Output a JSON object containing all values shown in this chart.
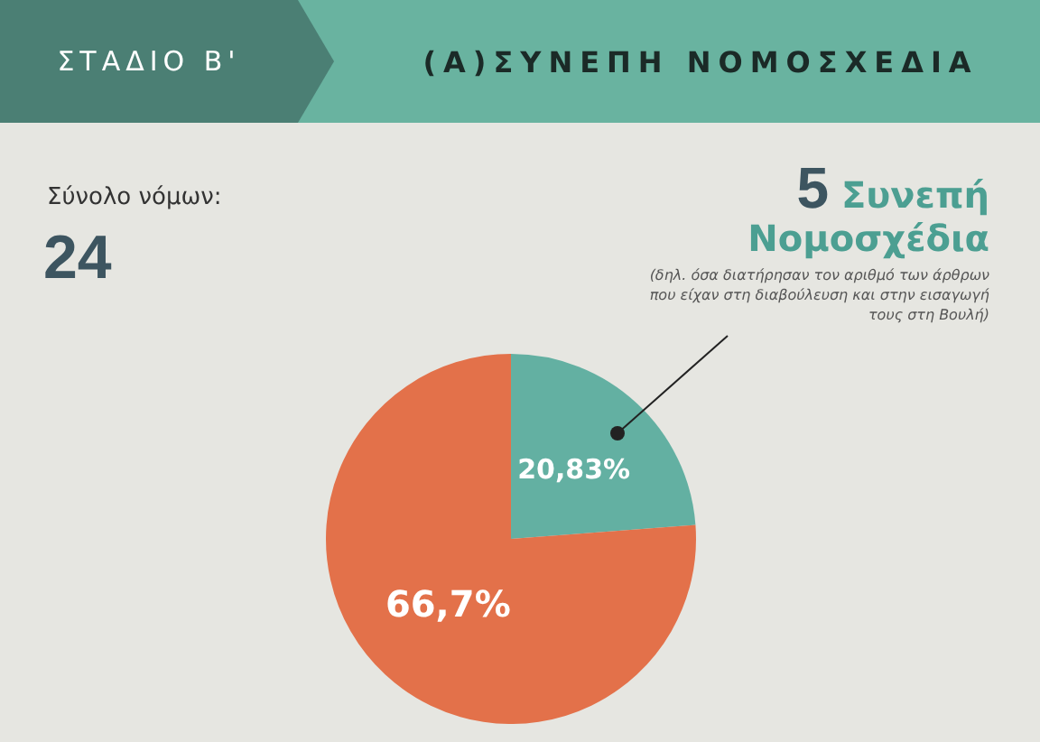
{
  "chart_data": {
    "type": "pie",
    "title": "ΣΤΑΔΙΟ Β'",
    "subtitle": "(Α)ΣΥΝΕΠΗ ΝΟΜΟΣΧΕΔΙΑ",
    "categories": [
      null,
      null
    ],
    "values": [
      20.83,
      66.7
    ],
    "colors": [
      "#63b0a2",
      "#e3714a"
    ],
    "value_labels": [
      "20,83%",
      "66,7%"
    ],
    "annotations": [
      "Σύνολο νόμων:",
      "24",
      "5",
      "Συνεπή Νομοσχέδια",
      "(δηλ. όσα διατήρησαν τον αριθμό των άρθρων που είχαν στη διαβούλευση και στην εισαγωγή τους στη Βουλή)"
    ],
    "legend": false
  }
}
